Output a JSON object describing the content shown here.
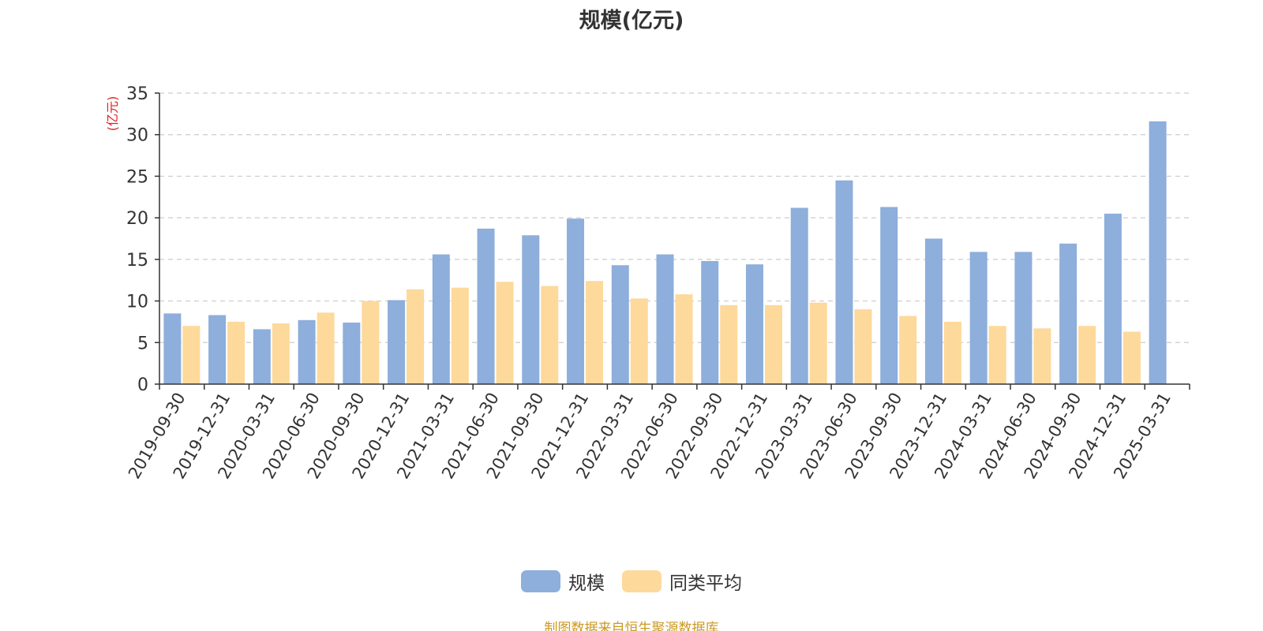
{
  "chart_data": {
    "type": "bar",
    "title": "规模(亿元)",
    "ylabel": "(亿元)",
    "ylim": [
      0,
      35
    ],
    "yticks": [
      0,
      5,
      10,
      15,
      20,
      25,
      30,
      35
    ],
    "grid": true,
    "legend_position": "bottom",
    "categories": [
      "2019-09-30",
      "2019-12-31",
      "2020-03-31",
      "2020-06-30",
      "2020-09-30",
      "2020-12-31",
      "2021-03-31",
      "2021-06-30",
      "2021-09-30",
      "2021-12-31",
      "2022-03-31",
      "2022-06-30",
      "2022-09-30",
      "2022-12-31",
      "2023-03-31",
      "2023-06-30",
      "2023-09-30",
      "2023-12-31",
      "2024-03-31",
      "2024-06-30",
      "2024-09-30",
      "2024-12-31",
      "2025-03-31"
    ],
    "series": [
      {
        "name": "规模",
        "color": "#8eaedb",
        "values": [
          8.5,
          8.3,
          6.6,
          7.7,
          7.4,
          10.1,
          15.6,
          18.7,
          17.9,
          19.9,
          14.3,
          15.6,
          14.8,
          14.4,
          21.2,
          24.5,
          21.3,
          17.5,
          15.9,
          15.9,
          16.9,
          20.5,
          31.6
        ]
      },
      {
        "name": "同类平均",
        "color": "#fdd99b",
        "values": [
          7.0,
          7.5,
          7.3,
          8.6,
          10.0,
          11.4,
          11.6,
          12.3,
          11.8,
          12.4,
          10.3,
          10.8,
          9.5,
          9.5,
          9.8,
          9.0,
          8.2,
          7.5,
          7.0,
          6.7,
          7.0,
          6.3,
          null
        ]
      }
    ],
    "colors": {
      "axis": "#333333",
      "grid": "#cccccc",
      "ylabel": "#dd2222",
      "source": "#cc9922"
    },
    "source_note": "制图数据来自恒生聚源数据库"
  }
}
